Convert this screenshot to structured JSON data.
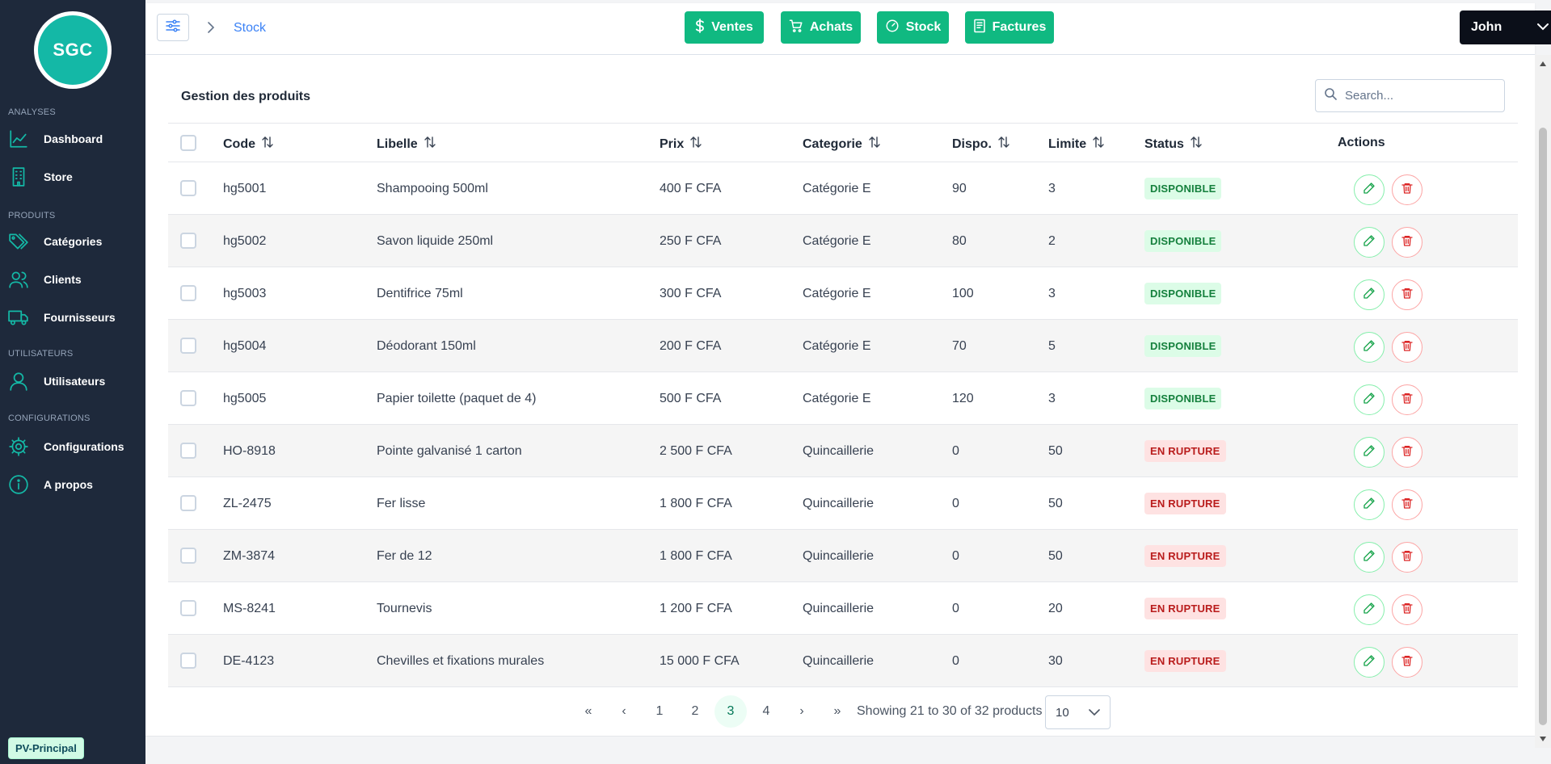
{
  "sidebar": {
    "logo_text": "SGC",
    "sections": [
      {
        "label": "ANALYSES"
      },
      {
        "label": "PRODUITS"
      },
      {
        "label": "UTILISATEURS"
      },
      {
        "label": "CONFIGURATIONS"
      }
    ],
    "items": [
      {
        "label": "Dashboard",
        "icon": "chart-line-icon"
      },
      {
        "label": "Store",
        "icon": "building-icon"
      },
      {
        "label": "Catégories",
        "icon": "tags-icon"
      },
      {
        "label": "Clients",
        "icon": "users-icon"
      },
      {
        "label": "Fournisseurs",
        "icon": "truck-icon"
      },
      {
        "label": "Utilisateurs",
        "icon": "user-icon"
      },
      {
        "label": "Configurations",
        "icon": "gear-icon"
      },
      {
        "label": "A propos",
        "icon": "info-icon"
      }
    ],
    "store_badge": "PV-Principal"
  },
  "topbar": {
    "breadcrumb": "Stock",
    "nav": [
      {
        "label": "Ventes",
        "icon": "dollar-icon"
      },
      {
        "label": "Achats",
        "icon": "cart-icon"
      },
      {
        "label": "Stock",
        "icon": "gauge-icon"
      },
      {
        "label": "Factures",
        "icon": "invoice-icon"
      }
    ],
    "user": "John"
  },
  "main": {
    "title": "Gestion des produits",
    "search_placeholder": "Search...",
    "columns": [
      "Code",
      "Libelle",
      "Prix",
      "Categorie",
      "Dispo.",
      "Limite",
      "Status",
      "Actions"
    ],
    "rows": [
      {
        "code": "hg5001",
        "libelle": "Shampooing 500ml",
        "prix": "400 F CFA",
        "categorie": "Catégorie E",
        "dispo": "90",
        "limite": "3",
        "status": "DISPONIBLE"
      },
      {
        "code": "hg5002",
        "libelle": "Savon liquide 250ml",
        "prix": "250 F CFA",
        "categorie": "Catégorie E",
        "dispo": "80",
        "limite": "2",
        "status": "DISPONIBLE"
      },
      {
        "code": "hg5003",
        "libelle": "Dentifrice 75ml",
        "prix": "300 F CFA",
        "categorie": "Catégorie E",
        "dispo": "100",
        "limite": "3",
        "status": "DISPONIBLE"
      },
      {
        "code": "hg5004",
        "libelle": "Déodorant 150ml",
        "prix": "200 F CFA",
        "categorie": "Catégorie E",
        "dispo": "70",
        "limite": "5",
        "status": "DISPONIBLE"
      },
      {
        "code": "hg5005",
        "libelle": "Papier toilette (paquet de 4)",
        "prix": "500 F CFA",
        "categorie": "Catégorie E",
        "dispo": "120",
        "limite": "3",
        "status": "DISPONIBLE"
      },
      {
        "code": "HO-8918",
        "libelle": "Pointe galvanisé 1 carton",
        "prix": "2 500 F CFA",
        "categorie": "Quincaillerie",
        "dispo": "0",
        "limite": "50",
        "status": "EN RUPTURE"
      },
      {
        "code": "ZL-2475",
        "libelle": "Fer lisse",
        "prix": "1 800 F CFA",
        "categorie": "Quincaillerie",
        "dispo": "0",
        "limite": "50",
        "status": "EN RUPTURE"
      },
      {
        "code": "ZM-3874",
        "libelle": "Fer de 12",
        "prix": "1 800 F CFA",
        "categorie": "Quincaillerie",
        "dispo": "0",
        "limite": "50",
        "status": "EN RUPTURE"
      },
      {
        "code": "MS-8241",
        "libelle": "Tournevis",
        "prix": "1 200 F CFA",
        "categorie": "Quincaillerie",
        "dispo": "0",
        "limite": "20",
        "status": "EN RUPTURE"
      },
      {
        "code": "DE-4123",
        "libelle": "Chevilles et fixations murales",
        "prix": "15 000 F CFA",
        "categorie": "Quincaillerie",
        "dispo": "0",
        "limite": "30",
        "status": "EN RUPTURE"
      }
    ],
    "pagination": {
      "first": "«",
      "prev": "‹",
      "next": "›",
      "last": "»",
      "pages": [
        "1",
        "2",
        "3",
        "4"
      ],
      "current": "3",
      "summary": "Showing 21 to 30 of 32 products",
      "per_page": "10"
    }
  },
  "colors": {
    "sidebar_bg": "#1e293b",
    "accent": "#10b981",
    "available": "#15803d",
    "out_of_stock": "#b91c1c"
  }
}
